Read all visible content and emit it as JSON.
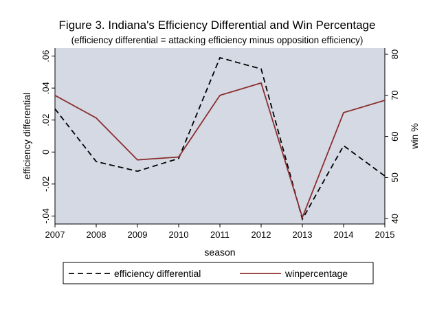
{
  "chart_data": {
    "type": "line",
    "title": "Figure 3.  Indiana's Efficiency Differential and Win Percentage",
    "subtitle": "(efficiency differential = attacking efficiency minus opposition efficiency)",
    "xlabel": "season",
    "ylabel_left": "efficiency differential",
    "ylabel_right": "win %",
    "x": [
      "2007",
      "2008",
      "2009",
      "2010",
      "2011",
      "2012",
      "2013",
      "2014",
      "2015"
    ],
    "y_left_lim": [
      -0.045,
      0.065
    ],
    "y_left_ticks": [
      -0.04,
      -0.02,
      0,
      0.02,
      0.04,
      0.06
    ],
    "y_left_tick_labels": [
      "-.04",
      "-.02",
      "0",
      ".02",
      ".04",
      ".06"
    ],
    "y_right_lim": [
      38.7,
      81.5
    ],
    "y_right_ticks": [
      40,
      50,
      60,
      70,
      80
    ],
    "y_right_tick_labels": [
      "40",
      "50",
      "60",
      "70",
      "80"
    ],
    "series": [
      {
        "name": "efficiency differential",
        "axis": "left",
        "style": "dashed",
        "color": "#000000",
        "values": [
          0.027,
          -0.006,
          -0.012,
          -0.004,
          0.059,
          0.052,
          -0.042,
          0.004,
          -0.015
        ]
      },
      {
        "name": "winpercentage",
        "axis": "right",
        "style": "solid",
        "color": "#8b2e2e",
        "values": [
          70,
          64.5,
          54.3,
          55,
          70,
          73,
          40.3,
          65.8,
          68.8
        ]
      }
    ],
    "grid": false,
    "legend_position": "bottom",
    "plot_background": "#d4d9e4"
  }
}
